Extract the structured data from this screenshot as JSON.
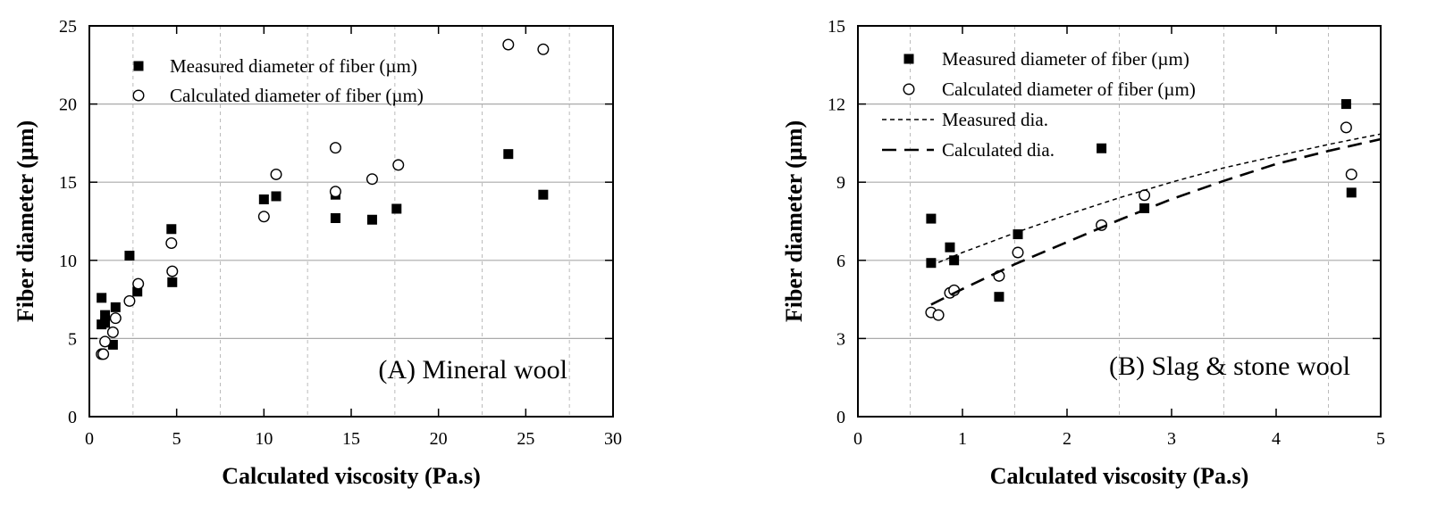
{
  "chart_data": [
    {
      "type": "scatter",
      "annotation": "(A) Mineral wool",
      "xlabel": "Calculated viscosity (Pa.s)",
      "ylabel": "Fiber diameter (µm)",
      "xlim": [
        0,
        30
      ],
      "ylim": [
        0,
        25
      ],
      "xticks": [
        "0",
        "5",
        "10",
        "15",
        "20",
        "25",
        "30"
      ],
      "yticks": [
        "0",
        "5",
        "10",
        "15",
        "20",
        "25"
      ],
      "grid": true,
      "legend_position": "top-left",
      "series": [
        {
          "name": "Measured diameter of fiber (µm)",
          "marker": "filled-square",
          "points": [
            {
              "x": 0.7,
              "y": 7.6
            },
            {
              "x": 0.7,
              "y": 5.9
            },
            {
              "x": 0.9,
              "y": 6.5
            },
            {
              "x": 0.9,
              "y": 6.0
            },
            {
              "x": 1.35,
              "y": 4.6
            },
            {
              "x": 1.5,
              "y": 7.0
            },
            {
              "x": 2.3,
              "y": 10.3
            },
            {
              "x": 2.75,
              "y": 8.0
            },
            {
              "x": 4.7,
              "y": 12.0
            },
            {
              "x": 4.75,
              "y": 8.6
            },
            {
              "x": 10.0,
              "y": 13.9
            },
            {
              "x": 10.7,
              "y": 14.1
            },
            {
              "x": 14.1,
              "y": 12.7
            },
            {
              "x": 14.1,
              "y": 14.2
            },
            {
              "x": 16.2,
              "y": 12.6
            },
            {
              "x": 17.6,
              "y": 13.3
            },
            {
              "x": 24.0,
              "y": 16.8
            },
            {
              "x": 26.0,
              "y": 14.2
            }
          ]
        },
        {
          "name": "Calculated diameter of fiber (µm)",
          "marker": "open-circle",
          "points": [
            {
              "x": 0.7,
              "y": 4.0
            },
            {
              "x": 0.8,
              "y": 4.0
            },
            {
              "x": 0.9,
              "y": 4.8
            },
            {
              "x": 1.35,
              "y": 5.4
            },
            {
              "x": 1.5,
              "y": 6.3
            },
            {
              "x": 2.3,
              "y": 7.4
            },
            {
              "x": 2.8,
              "y": 8.5
            },
            {
              "x": 4.7,
              "y": 11.1
            },
            {
              "x": 4.75,
              "y": 9.3
            },
            {
              "x": 10.0,
              "y": 12.8
            },
            {
              "x": 10.7,
              "y": 15.5
            },
            {
              "x": 14.1,
              "y": 17.2
            },
            {
              "x": 14.1,
              "y": 14.4
            },
            {
              "x": 16.2,
              "y": 15.2
            },
            {
              "x": 17.7,
              "y": 16.1
            },
            {
              "x": 24.0,
              "y": 23.8
            },
            {
              "x": 26.0,
              "y": 23.5
            }
          ]
        }
      ]
    },
    {
      "type": "scatter",
      "annotation": "(B) Slag & stone wool",
      "xlabel": "Calculated viscosity (Pa.s)",
      "ylabel": "Fiber diameter (µm)",
      "xlim": [
        0,
        5
      ],
      "ylim": [
        0,
        15
      ],
      "xticks": [
        "0",
        "1",
        "2",
        "3",
        "4",
        "5"
      ],
      "yticks": [
        "0",
        "3",
        "6",
        "9",
        "12",
        "15"
      ],
      "grid": true,
      "legend_position": "top-left",
      "series": [
        {
          "name": "Measured diameter of fiber (µm)",
          "marker": "filled-square",
          "points": [
            {
              "x": 0.7,
              "y": 7.6
            },
            {
              "x": 0.7,
              "y": 5.9
            },
            {
              "x": 0.88,
              "y": 6.5
            },
            {
              "x": 0.92,
              "y": 6.0
            },
            {
              "x": 1.35,
              "y": 4.6
            },
            {
              "x": 1.53,
              "y": 7.0
            },
            {
              "x": 2.33,
              "y": 10.3
            },
            {
              "x": 2.74,
              "y": 8.0
            },
            {
              "x": 4.67,
              "y": 12.0
            },
            {
              "x": 4.72,
              "y": 8.6
            }
          ]
        },
        {
          "name": "Calculated diameter of fiber (µm)",
          "marker": "open-circle",
          "points": [
            {
              "x": 0.7,
              "y": 4.0
            },
            {
              "x": 0.77,
              "y": 3.9
            },
            {
              "x": 0.88,
              "y": 4.75
            },
            {
              "x": 0.92,
              "y": 4.85
            },
            {
              "x": 1.35,
              "y": 5.4
            },
            {
              "x": 1.53,
              "y": 6.3
            },
            {
              "x": 2.33,
              "y": 7.35
            },
            {
              "x": 2.74,
              "y": 8.5
            },
            {
              "x": 4.67,
              "y": 11.1
            },
            {
              "x": 4.72,
              "y": 9.3
            }
          ]
        },
        {
          "name": "Measured dia.",
          "line_style": "fine-dashed",
          "points": [
            {
              "x": 0.7,
              "y": 5.8
            },
            {
              "x": 1.0,
              "y": 6.3
            },
            {
              "x": 1.5,
              "y": 7.05
            },
            {
              "x": 2.0,
              "y": 7.75
            },
            {
              "x": 2.5,
              "y": 8.4
            },
            {
              "x": 3.0,
              "y": 9.0
            },
            {
              "x": 3.5,
              "y": 9.55
            },
            {
              "x": 4.0,
              "y": 10.0
            },
            {
              "x": 4.5,
              "y": 10.45
            },
            {
              "x": 5.0,
              "y": 10.85
            }
          ]
        },
        {
          "name": "Calculated dia.",
          "line_style": "long-dashed",
          "points": [
            {
              "x": 0.7,
              "y": 4.3
            },
            {
              "x": 1.0,
              "y": 4.9
            },
            {
              "x": 1.5,
              "y": 5.85
            },
            {
              "x": 2.0,
              "y": 6.7
            },
            {
              "x": 2.5,
              "y": 7.55
            },
            {
              "x": 3.0,
              "y": 8.35
            },
            {
              "x": 3.5,
              "y": 9.05
            },
            {
              "x": 4.0,
              "y": 9.7
            },
            {
              "x": 4.5,
              "y": 10.2
            },
            {
              "x": 5.0,
              "y": 10.65
            }
          ]
        }
      ]
    }
  ]
}
